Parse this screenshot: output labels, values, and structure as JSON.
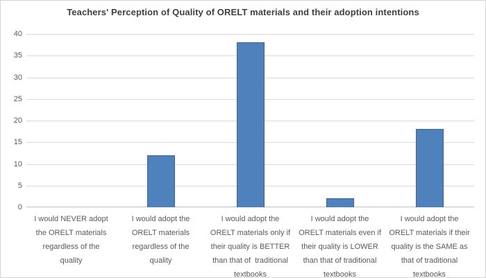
{
  "frame": {
    "background": "#ffffff",
    "border_color": "#d3d3d3"
  },
  "chart_data": {
    "type": "bar",
    "title": "Teachers' Perception of Quality of ORELT materials and their adoption intentions",
    "categories": [
      "I would NEVER adopt the ORELT materials regardless of the quality",
      "I would adopt the ORELT materials regardless of the quality",
      "I would adopt the ORELT materials only if their quality is BETTER than that of traditional textbooks",
      "I would adopt the ORELT materials even if their quality is LOWER than that of traditional textbooks",
      "I would adopt the ORELT materials if their quality is the SAME as that of traditional textbooks"
    ],
    "category_lines": [
      [
        "I would NEVER adopt",
        "the ORELT materials",
        "regardless of the",
        "quality"
      ],
      [
        "I would adopt the",
        "ORELT materials",
        "regardless of the",
        "quality"
      ],
      [
        "I would adopt the",
        "ORELT materials only if",
        "their quality is BETTER",
        "than that of  traditional",
        "textbooks"
      ],
      [
        "I would adopt the",
        "ORELT materials even if",
        "their quality is LOWER",
        "than that of traditional",
        "textbooks"
      ],
      [
        "I would adopt the",
        "ORELT materials if their",
        "quality is the SAME as",
        "that of traditional",
        "textbooks"
      ]
    ],
    "values": [
      0,
      12,
      38,
      2,
      18
    ],
    "xlabel": "",
    "ylabel": "",
    "ylim": [
      0,
      40
    ],
    "yticks": [
      0,
      5,
      10,
      15,
      20,
      25,
      30,
      35,
      40
    ],
    "grid": true,
    "legend": "none",
    "colors": {
      "bar_fill": "#4F81BD",
      "bar_border": "#38639E",
      "gridline": "#D9D9D9",
      "axis_line": "#BFBFBF",
      "tick_text": "#595959",
      "category_text": "#595959",
      "title_text": "#404040"
    }
  }
}
